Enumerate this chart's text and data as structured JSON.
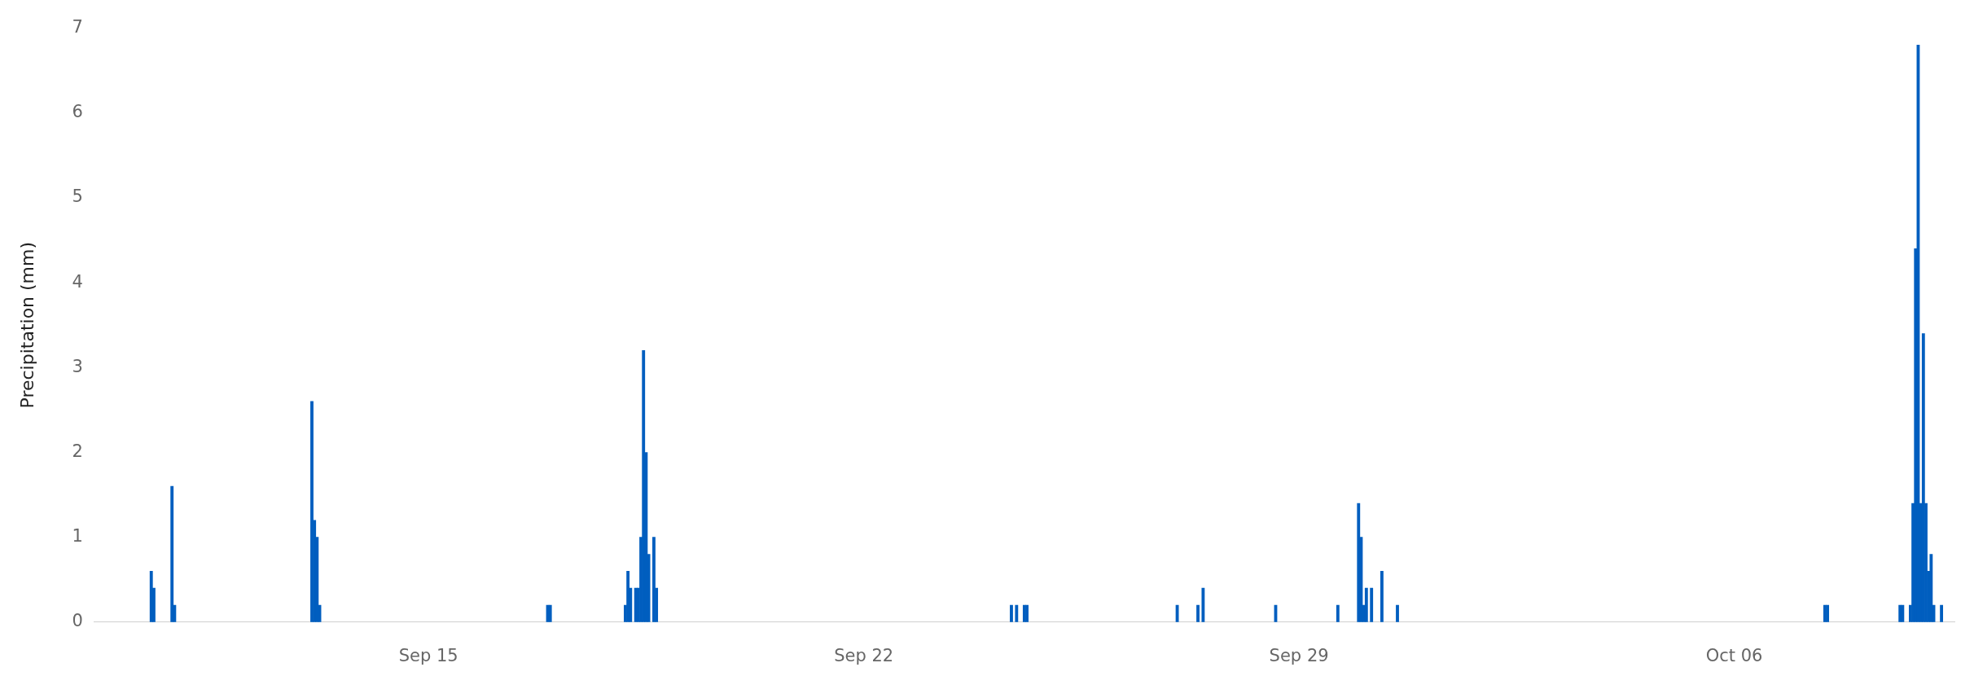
{
  "chart_data": {
    "type": "bar",
    "ylabel": "Precipitation (mm)",
    "color": "#005ebf",
    "grid": false,
    "legend": false,
    "xticks": [
      {
        "value": "--09-15",
        "label": "Sep 15"
      },
      {
        "value": "--09-22",
        "label": "Sep 22"
      },
      {
        "value": "--09-29",
        "label": "Sep 29"
      },
      {
        "value": "--10-06",
        "label": "Oct 06"
      }
    ],
    "xlim": [
      "--09-09T15:00",
      "--10-09T13:00"
    ],
    "ylim": [
      0,
      7
    ],
    "yticks": [
      0,
      1,
      2,
      3,
      4,
      5,
      6,
      7
    ],
    "x": [
      "--09-10T13:00",
      "--09-10T14:00",
      "--09-10T21:00",
      "--09-10T22:00",
      "--09-13T03:00",
      "--09-13T04:00",
      "--09-13T05:00",
      "--09-13T06:00",
      "--09-16T22:00",
      "--09-16T23:00",
      "--09-18T04:00",
      "--09-18T05:00",
      "--09-18T06:00",
      "--09-18T08:00",
      "--09-18T09:00",
      "--09-18T10:00",
      "--09-18T11:00",
      "--09-18T12:00",
      "--09-18T13:00",
      "--09-18T15:00",
      "--09-18T16:00",
      "--09-24T09:00",
      "--09-24T11:00",
      "--09-24T14:00",
      "--09-24T15:00",
      "--09-27T01:00",
      "--09-27T09:00",
      "--09-27T11:00",
      "--09-28T15:00",
      "--09-29T15:00",
      "--09-29T23:00",
      "--09-30T00:00",
      "--09-30T01:00",
      "--09-30T02:00",
      "--09-30T04:00",
      "--09-30T08:00",
      "--09-30T14:00",
      "--10-07T11:00",
      "--10-07T12:00",
      "--10-08T16:00",
      "--10-08T17:00",
      "--10-08T20:00",
      "--10-08T21:00",
      "--10-08T22:00",
      "--10-08T23:00",
      "--10-09T00:00",
      "--10-09T01:00",
      "--10-09T02:00",
      "--10-09T03:00",
      "--10-09T04:00",
      "--10-09T05:00",
      "--10-09T08:00"
    ],
    "values": [
      0.6,
      0.4,
      1.6,
      0.2,
      2.6,
      1.2,
      1.0,
      0.2,
      0.2,
      0.2,
      0.2,
      0.6,
      0.4,
      0.4,
      0.4,
      1.0,
      3.2,
      2.0,
      0.8,
      1.0,
      0.4,
      0.2,
      0.2,
      0.2,
      0.2,
      0.2,
      0.2,
      0.4,
      0.2,
      0.2,
      1.4,
      1.0,
      0.2,
      0.4,
      0.4,
      0.6,
      0.2,
      0.2,
      0.2,
      0.2,
      0.2,
      0.2,
      1.4,
      4.4,
      6.8,
      1.4,
      3.4,
      1.4,
      0.6,
      0.8,
      0.2,
      0.2
    ]
  }
}
